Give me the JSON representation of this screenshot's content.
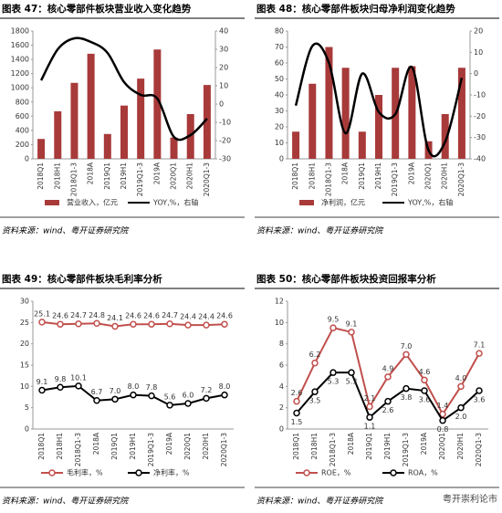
{
  "chart_data": [
    {
      "type": "bar_line",
      "title": "图表 47：核心零部件板块营业收入变化趋势",
      "smooth": true,
      "categories": [
        "2018Q1",
        "2018H1",
        "2018Q1-3",
        "2018A",
        "2019Q1",
        "2019H1",
        "2019Q1-3",
        "2019A",
        "2020Q1",
        "2020H1",
        "2020Q1-3"
      ],
      "series": [
        {
          "name": "营业收入，亿元",
          "color": "#a83a3a",
          "values": [
            280,
            670,
            1070,
            1480,
            350,
            750,
            1130,
            1540,
            300,
            630,
            1040
          ]
        },
        {
          "name": "YOY,%，右轴",
          "color": "#000000",
          "axis": "y2",
          "values": [
            13,
            30,
            36,
            34,
            28,
            12,
            5,
            3,
            -18,
            -17,
            -8
          ]
        }
      ],
      "ylim": [
        0,
        1800
      ],
      "yticks": [
        0,
        200,
        400,
        600,
        800,
        1000,
        1200,
        1400,
        1600,
        1800
      ],
      "y2lim": [
        -30,
        40
      ],
      "y2ticks": [
        -30,
        -20,
        -10,
        0,
        10,
        20,
        30,
        40
      ],
      "grid": false,
      "source": "资料来源：wind、粤开证券研究院"
    },
    {
      "type": "bar_line",
      "title": "图表 48：核心零部件板块归母净利润变化趋势",
      "smooth": true,
      "categories": [
        "2018Q1",
        "2018H1",
        "2018Q1-3",
        "2018A",
        "2019Q1",
        "2019H1",
        "2019Q1-3",
        "2019A",
        "2020Q1",
        "2020H1",
        "2020Q1-3"
      ],
      "series": [
        {
          "name": "净利润，亿元",
          "color": "#a83a3a",
          "values": [
            17,
            47,
            70,
            57,
            17,
            40,
            57,
            58,
            11,
            28,
            57
          ]
        },
        {
          "name": "YOY,%，右轴",
          "color": "#000000",
          "axis": "y2",
          "values": [
            -15,
            13,
            5,
            -28,
            0,
            -18,
            -19,
            3,
            -36,
            -32,
            -2
          ]
        }
      ],
      "ylim": [
        0,
        80
      ],
      "yticks": [
        0,
        10,
        20,
        30,
        40,
        50,
        60,
        70,
        80
      ],
      "y2lim": [
        -40,
        20
      ],
      "y2ticks": [
        -40,
        -30,
        -20,
        -10,
        0,
        10,
        20
      ],
      "grid": false,
      "source": "资料来源：wind、粤开证券研究院"
    },
    {
      "type": "line",
      "title": "图表 49：核心零部件板块毛利率分析",
      "smooth": false,
      "categories": [
        "2018Q1",
        "2018H1",
        "2018Q1-3",
        "2018A",
        "2019Q1",
        "2019H1",
        "2019Q1-3",
        "2019A",
        "2020Q1",
        "2020H1",
        "2020Q1-3"
      ],
      "series": [
        {
          "name": "毛利率，%",
          "color": "#c0504d",
          "label_side": "above",
          "values": [
            25.1,
            24.6,
            24.7,
            24.8,
            24.1,
            24.6,
            24.6,
            24.7,
            24.4,
            24.4,
            24.6
          ],
          "value_labels": [
            "25.1",
            "24.6",
            "24.7",
            "24.8",
            "24.1",
            "24.6",
            "24.6",
            "24.7",
            "24.4",
            "24.4",
            "24.6"
          ]
        },
        {
          "name": "净利率，%",
          "color": "#000000",
          "label_side": "above",
          "values": [
            9.1,
            9.8,
            10.1,
            6.7,
            7,
            8,
            7.8,
            5.6,
            6,
            7.2,
            8
          ],
          "value_labels": [
            "9.1",
            "9.8",
            "10.1",
            "6.7",
            "7.0",
            "8.0",
            "7.8",
            "5.6",
            "6.0",
            "7.2",
            "8.0"
          ]
        }
      ],
      "ylim": [
        0,
        30
      ],
      "yticks": [
        0,
        5,
        10,
        15,
        20,
        25,
        30
      ],
      "grid": false,
      "source": "资料来源：wind、粤开证券研究院"
    },
    {
      "type": "line",
      "title": "图表 50：核心零部件板块投资回报率分析",
      "smooth": false,
      "categories": [
        "2018Q1",
        "2018H1",
        "2018Q1-3",
        "2018A",
        "2019Q1",
        "2019H1",
        "2019Q1-3",
        "2019A",
        "2020Q1",
        "2020H1",
        "2020Q1-3"
      ],
      "series": [
        {
          "name": "ROE，%",
          "color": "#c0504d",
          "label_side": "above",
          "values": [
            2.6,
            6.2,
            9.5,
            9.1,
            2.1,
            4.9,
            7,
            4.6,
            1.4,
            4,
            7.1
          ],
          "value_labels": [
            "2.6",
            "6.2",
            "9.5",
            "9.1",
            "2.1",
            "4.9",
            "7.0",
            "4.6",
            "1.4",
            "4.0",
            "7.1"
          ]
        },
        {
          "name": "ROA，%",
          "color": "#000000",
          "label_side": "below",
          "values": [
            1.5,
            3.5,
            5.3,
            5.3,
            1.1,
            2.6,
            3.8,
            3.6,
            0.8,
            2,
            3.6
          ],
          "value_labels": [
            "1.5",
            "3.5",
            "5.3",
            "5.3",
            "1.1",
            "2.6",
            "3.8",
            "3.6",
            "0.8",
            "2.0",
            "3.6"
          ]
        }
      ],
      "ylim": [
        0,
        12
      ],
      "yticks": [
        0,
        2,
        4,
        6,
        8,
        10,
        12
      ],
      "grid": false,
      "source": "资料来源：wind、粤开证券研究院"
    }
  ],
  "watermark": "粤开崇利论市"
}
